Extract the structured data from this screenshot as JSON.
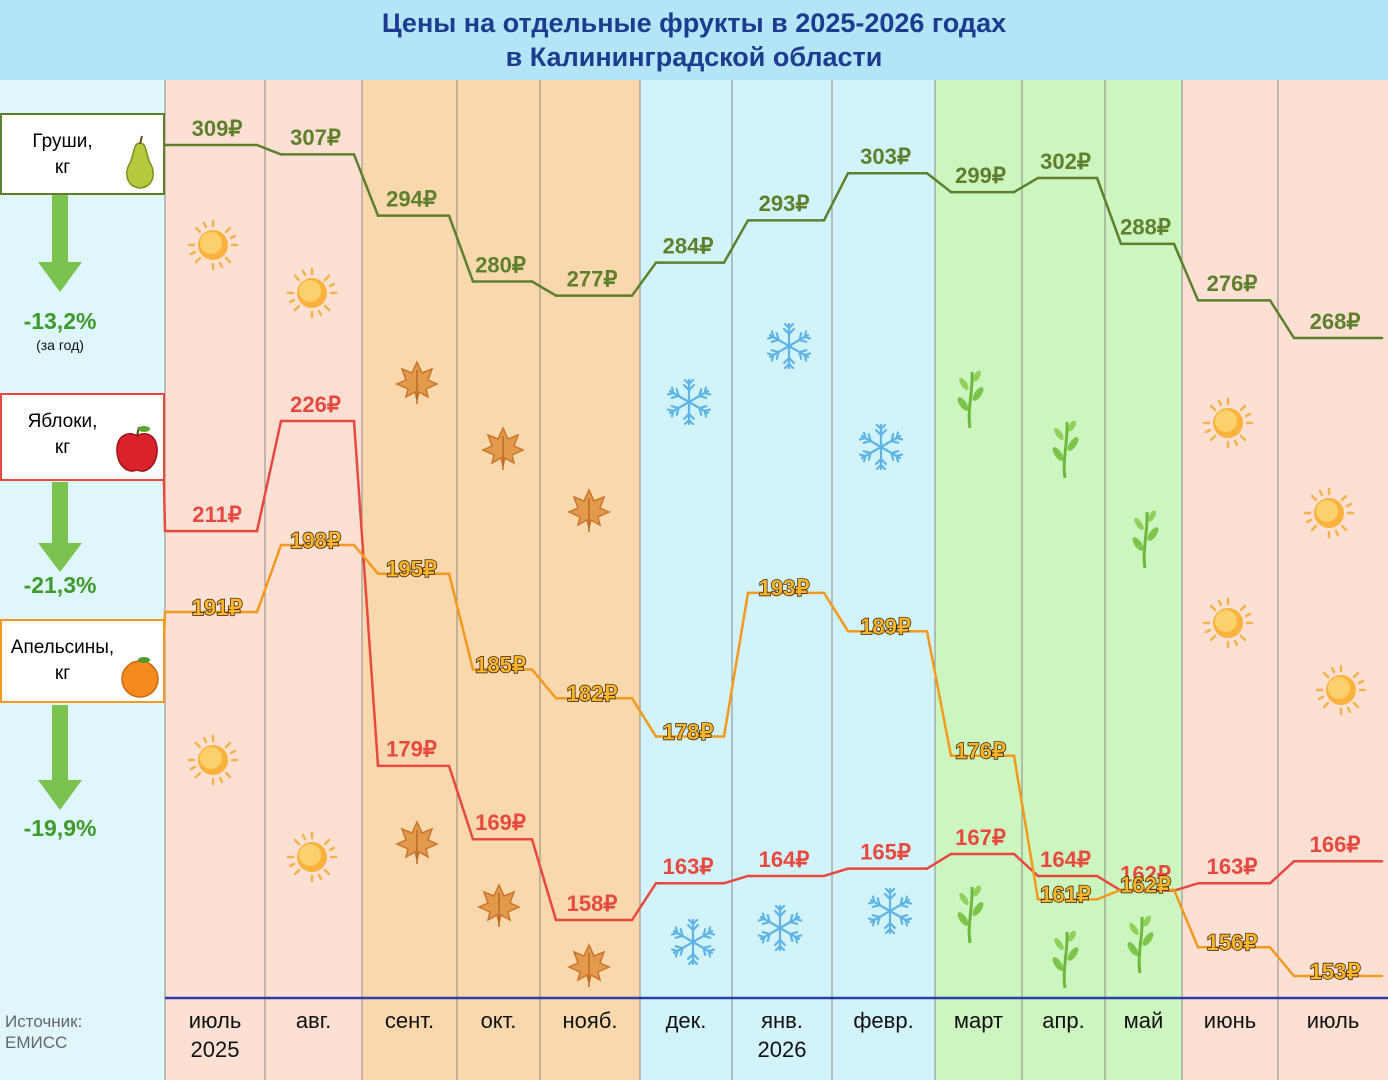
{
  "chart_data": {
    "type": "step-line",
    "title": "Цены на отдельные фрукты в 2025-2026 годах\nв Калининградской области",
    "categories": [
      "июль\n2025",
      "авг.",
      "сент.",
      "окт.",
      "нояб.",
      "дек.",
      "янв.\n2026",
      "февр.",
      "март",
      "апр.",
      "май",
      "июнь",
      "июль"
    ],
    "series": [
      {
        "name": "Груши,\nкг",
        "color": "#5e7f2c",
        "change": "-13,2%",
        "change_note": "(за год)",
        "values": [
          309,
          307,
          294,
          280,
          277,
          284,
          293,
          303,
          299,
          302,
          288,
          276,
          268
        ],
        "value_labels": [
          "309₽",
          "307₽",
          "294₽",
          "280₽",
          "277₽",
          "284₽",
          "293₽",
          "303₽",
          "299₽",
          "302₽",
          "288₽",
          "276₽",
          "268₽"
        ]
      },
      {
        "name": "Яблоки,\nкг",
        "color": "#e8493f",
        "change": "-21,3%",
        "values": [
          211,
          226,
          179,
          169,
          158,
          163,
          164,
          165,
          167,
          164,
          162,
          163,
          166
        ],
        "value_labels": [
          "211₽",
          "226₽",
          "179₽",
          "169₽",
          "158₽",
          "163₽",
          "164₽",
          "165₽",
          "167₽",
          "164₽",
          "162₽",
          "163₽",
          "166₽"
        ]
      },
      {
        "name": "Апельсины,\nкг",
        "color": "#f39a1e",
        "change": "-19,9%",
        "values": [
          191,
          198,
          195,
          185,
          182,
          178,
          193,
          189,
          176,
          161,
          162,
          156,
          153
        ],
        "value_labels": [
          "191₽",
          "198₽",
          "195₽",
          "185₽",
          "182₽",
          "178₽",
          "193₽",
          "189₽",
          "176₽",
          "161₽",
          "162₽",
          "156₽",
          "153₽"
        ]
      }
    ],
    "source": "Источник:\nЕМИСС"
  }
}
